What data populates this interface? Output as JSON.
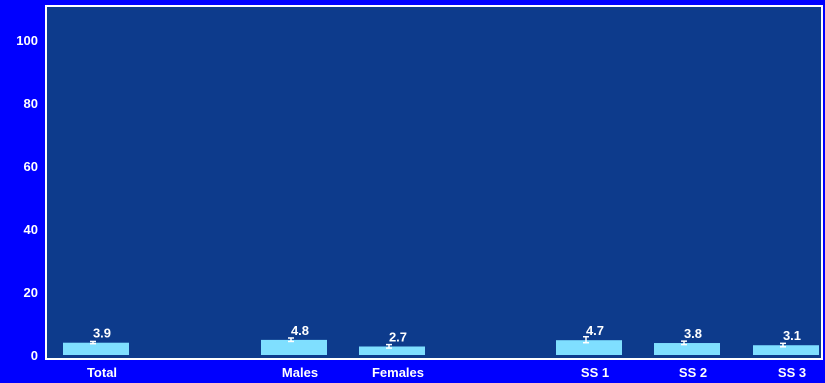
{
  "chart_data": {
    "type": "bar",
    "title": "",
    "xlabel": "",
    "ylabel": "",
    "ylim": [
      0,
      110
    ],
    "yticks": [
      0,
      20,
      40,
      60,
      80,
      100
    ],
    "grid": false,
    "legend": "none",
    "categories": [
      "Total",
      "Males",
      "Females",
      "SS 1",
      "SS 2",
      "SS 3"
    ],
    "values": [
      3.9,
      4.8,
      2.7,
      4.7,
      3.8,
      3.1
    ],
    "value_labels": [
      "3.9",
      "4.8",
      "2.7",
      "4.7",
      "3.8",
      "3.1"
    ],
    "error_bars": [
      {
        "low": 3.6,
        "high": 4.3
      },
      {
        "low": 4.3,
        "high": 5.4
      },
      {
        "low": 2.2,
        "high": 3.3
      },
      {
        "low": 3.9,
        "high": 5.8
      },
      {
        "low": 3.3,
        "high": 4.4
      },
      {
        "low": 2.6,
        "high": 3.7
      }
    ],
    "colors": {
      "page_background": "#0000ff",
      "plot_background": "#0d3b8c",
      "plot_border": "#ffffff",
      "bar": "#7fdfff",
      "text": "#ffffff",
      "error_bar": "#ffffff"
    }
  }
}
